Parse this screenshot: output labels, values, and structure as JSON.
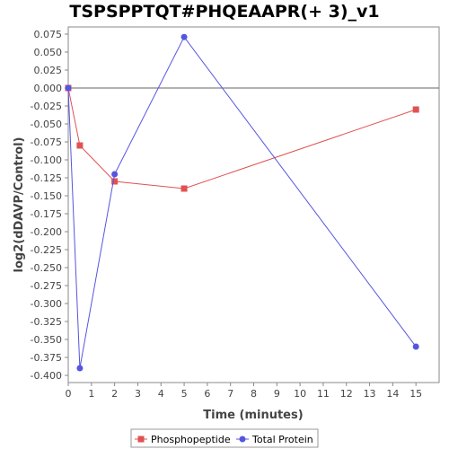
{
  "chart_data": {
    "type": "line",
    "title": "TSPSPPTQT#PHQEAAPR(+ 3)_v1",
    "xlabel": "Time (minutes)",
    "ylabel": "log2(dDAVP/Control)",
    "xlim": [
      0,
      16
    ],
    "ylim": [
      -0.41,
      0.085
    ],
    "xticks": [
      0,
      1,
      2,
      3,
      4,
      5,
      6,
      7,
      8,
      9,
      10,
      11,
      12,
      13,
      14,
      15
    ],
    "yticks": [
      0.075,
      0.05,
      0.025,
      0.0,
      -0.025,
      -0.05,
      -0.075,
      -0.1,
      -0.125,
      -0.15,
      -0.175,
      -0.2,
      -0.225,
      -0.25,
      -0.275,
      -0.3,
      -0.325,
      -0.35,
      -0.375,
      -0.4
    ],
    "ytick_labels": [
      "0.075",
      "0.050",
      "0.025",
      "0.000",
      "-0.025",
      "-0.050",
      "-0.075",
      "-0.100",
      "-0.125",
      "-0.150",
      "-0.175",
      "-0.200",
      "-0.225",
      "-0.250",
      "-0.275",
      "-0.300",
      "-0.325",
      "-0.350",
      "-0.375",
      "-0.400"
    ],
    "zero_line": true,
    "grid": false,
    "legend_position": "bottom",
    "series": [
      {
        "name": "Phosphopeptide",
        "color": "#e05252",
        "marker": "square",
        "x": [
          0,
          0.5,
          2,
          5,
          15
        ],
        "y": [
          0.0,
          -0.08,
          -0.13,
          -0.14,
          -0.03
        ]
      },
      {
        "name": "Total Protein",
        "color": "#5555e0",
        "marker": "circle",
        "x": [
          0,
          0.5,
          2,
          5,
          15
        ],
        "y": [
          0.0,
          -0.39,
          -0.12,
          0.071,
          -0.36
        ]
      }
    ]
  }
}
